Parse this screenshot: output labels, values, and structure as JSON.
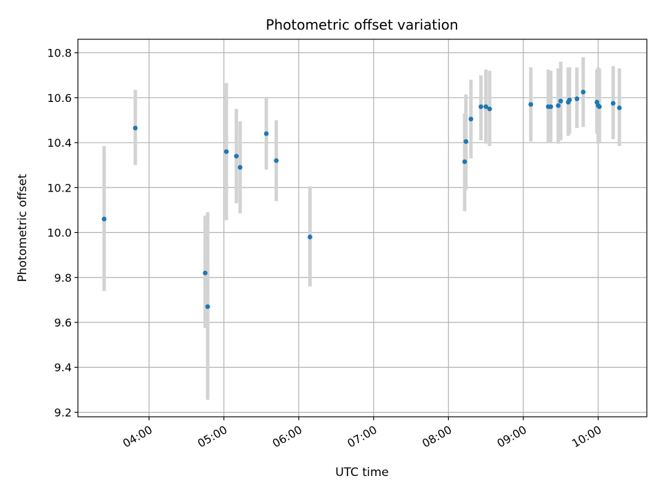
{
  "chart_data": {
    "type": "scatter",
    "title": "Photometric offset variation",
    "xlabel": "UTC time",
    "ylabel": "Photometric offset",
    "x_tick_labels": [
      "04:00",
      "05:00",
      "06:00",
      "07:00",
      "08:00",
      "09:00",
      "10:00"
    ],
    "y_ticks": [
      9.2,
      9.4,
      9.6,
      9.8,
      10.0,
      10.2,
      10.4,
      10.6,
      10.8
    ],
    "y_tick_labels": [
      "9.2",
      "9.4",
      "9.6",
      "9.8",
      "10.0",
      "10.2",
      "10.4",
      "10.6",
      "10.8"
    ],
    "xlim": [
      "03:03",
      "10:39"
    ],
    "ylim": [
      9.18,
      10.86
    ],
    "grid": true,
    "colors": {
      "point": "#1f77b4",
      "errorbar": "#d3d3d3",
      "grid": "#b0b0b0"
    },
    "series": [
      {
        "points": [
          {
            "x": "03:24",
            "y": 10.06,
            "ylo": 9.74,
            "yhi": 10.385
          },
          {
            "x": "03:49",
            "y": 10.465,
            "ylo": 10.3,
            "yhi": 10.635
          },
          {
            "x": "04:45",
            "y": 9.82,
            "ylo": 9.575,
            "yhi": 10.075
          },
          {
            "x": "04:47",
            "y": 9.67,
            "ylo": 9.255,
            "yhi": 10.09
          },
          {
            "x": "05:02",
            "y": 10.36,
            "ylo": 10.055,
            "yhi": 10.665
          },
          {
            "x": "05:10",
            "y": 10.34,
            "ylo": 10.13,
            "yhi": 10.55
          },
          {
            "x": "05:13",
            "y": 10.29,
            "ylo": 10.085,
            "yhi": 10.495
          },
          {
            "x": "05:34",
            "y": 10.44,
            "ylo": 10.28,
            "yhi": 10.6
          },
          {
            "x": "05:42",
            "y": 10.32,
            "ylo": 10.14,
            "yhi": 10.5
          },
          {
            "x": "06:09",
            "y": 9.98,
            "ylo": 9.76,
            "yhi": 10.205
          },
          {
            "x": "08:13",
            "y": 10.315,
            "ylo": 10.095,
            "yhi": 10.53
          },
          {
            "x": "08:14",
            "y": 10.405,
            "ylo": 10.19,
            "yhi": 10.615
          },
          {
            "x": "08:18",
            "y": 10.505,
            "ylo": 10.33,
            "yhi": 10.68
          },
          {
            "x": "08:26",
            "y": 10.56,
            "ylo": 10.41,
            "yhi": 10.7
          },
          {
            "x": "08:30",
            "y": 10.56,
            "ylo": 10.395,
            "yhi": 10.725
          },
          {
            "x": "08:33",
            "y": 10.55,
            "ylo": 10.385,
            "yhi": 10.72
          },
          {
            "x": "09:06",
            "y": 10.57,
            "ylo": 10.405,
            "yhi": 10.735
          },
          {
            "x": "09:20",
            "y": 10.56,
            "ylo": 10.4,
            "yhi": 10.725
          },
          {
            "x": "09:22",
            "y": 10.56,
            "ylo": 10.4,
            "yhi": 10.72
          },
          {
            "x": "09:28",
            "y": 10.565,
            "ylo": 10.395,
            "yhi": 10.73
          },
          {
            "x": "09:30",
            "y": 10.585,
            "ylo": 10.41,
            "yhi": 10.76
          },
          {
            "x": "09:36",
            "y": 10.58,
            "ylo": 10.43,
            "yhi": 10.735
          },
          {
            "x": "09:37",
            "y": 10.59,
            "ylo": 10.44,
            "yhi": 10.735
          },
          {
            "x": "09:43",
            "y": 10.595,
            "ylo": 10.465,
            "yhi": 10.735
          },
          {
            "x": "09:48",
            "y": 10.625,
            "ylo": 10.47,
            "yhi": 10.78
          },
          {
            "x": "09:59",
            "y": 10.58,
            "ylo": 10.44,
            "yhi": 10.725
          },
          {
            "x": "10:00",
            "y": 10.565,
            "ylo": 10.395,
            "yhi": 10.735
          },
          {
            "x": "10:01",
            "y": 10.56,
            "ylo": 10.4,
            "yhi": 10.73
          },
          {
            "x": "10:12",
            "y": 10.575,
            "ylo": 10.415,
            "yhi": 10.74
          },
          {
            "x": "10:17",
            "y": 10.555,
            "ylo": 10.385,
            "yhi": 10.73
          }
        ]
      }
    ]
  }
}
